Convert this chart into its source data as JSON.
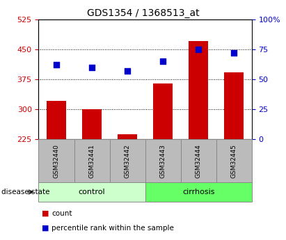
{
  "title": "GDS1354 / 1368513_at",
  "samples": [
    "GSM32440",
    "GSM32441",
    "GSM32442",
    "GSM32443",
    "GSM32444",
    "GSM32445"
  ],
  "counts": [
    320,
    300,
    238,
    365,
    470,
    392
  ],
  "percentiles": [
    62,
    60,
    57,
    65,
    75,
    72
  ],
  "groups": [
    "control",
    "control",
    "control",
    "cirrhosis",
    "cirrhosis",
    "cirrhosis"
  ],
  "ylim_left": [
    225,
    525
  ],
  "ylim_right": [
    0,
    100
  ],
  "yticks_left": [
    225,
    300,
    375,
    450,
    525
  ],
  "yticks_right": [
    0,
    25,
    50,
    75,
    100
  ],
  "bar_color": "#cc0000",
  "dot_color": "#0000cc",
  "bar_width": 0.55,
  "control_color": "#ccffcc",
  "cirrhosis_color": "#66ff66",
  "label_color_left": "#cc0000",
  "label_color_right": "#0000cc",
  "bg_xticklabels": "#cccccc",
  "grey_box_color": "#bbbbbb",
  "grey_box_edge": "#888888"
}
